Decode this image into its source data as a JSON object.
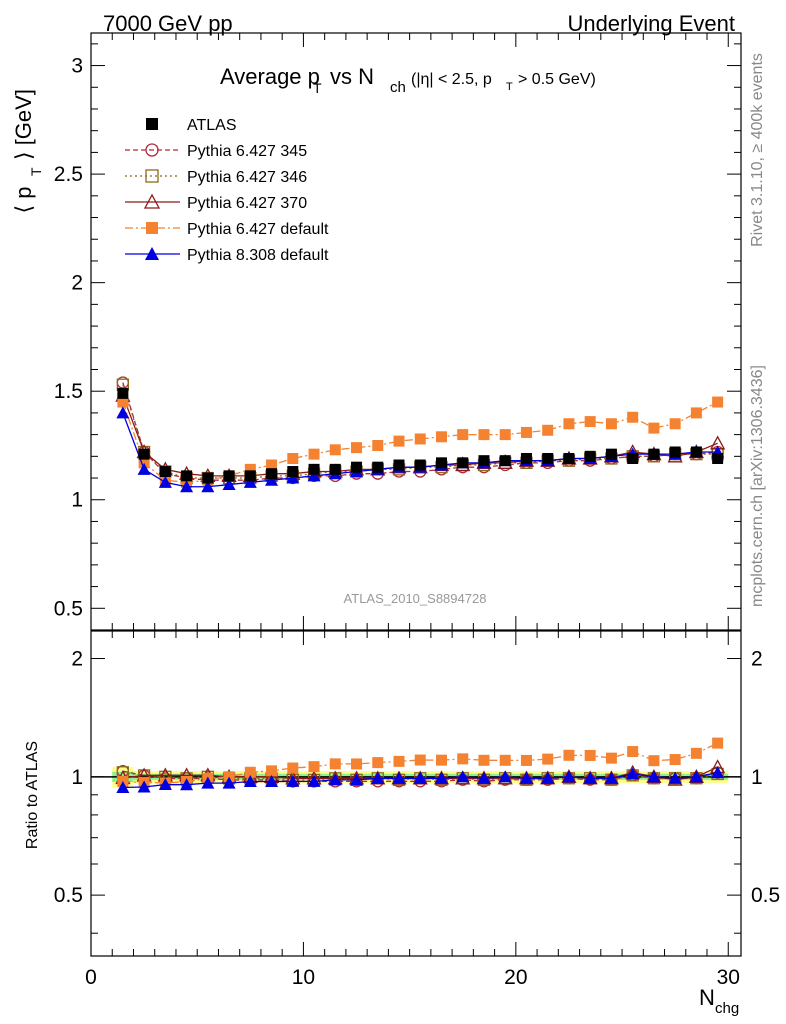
{
  "header": {
    "energy": "7000 GeV pp",
    "process": "Underlying Event",
    "title_main": "Average p",
    "title_sub_T": "T",
    "title_vs": "vs N",
    "title_sub_ch": "ch",
    "title_cut_a": "(|η| < 2.5, p",
    "title_cut_T": "T",
    "title_cut_b": "> 0.5 GeV)",
    "analysis_id": "ATLAS_2010_S8894728",
    "rivet_note": "Rivet 3.1.10, ≥ 400k events",
    "mcplots_note": "mcplots.cern.ch [arXiv:1306.3436]"
  },
  "axes": {
    "ylabel_main_a": "⟨ p",
    "ylabel_main_T": "T",
    "ylabel_main_b": "⟩ [GeV]",
    "ylabel_ratio": "Ratio to ATLAS",
    "xlabel_a": "N",
    "xlabel_sub": "chg",
    "main_yticks": [
      "0.5",
      "1",
      "1.5",
      "2",
      "2.5",
      "3"
    ],
    "ratio_yticks": [
      "0.5",
      "1",
      "2"
    ],
    "xticks": [
      "0",
      "10",
      "20",
      "30"
    ]
  },
  "legend": [
    {
      "label": "ATLAS"
    },
    {
      "label": "Pythia 6.427 345"
    },
    {
      "label": "Pythia 6.427 346"
    },
    {
      "label": "Pythia 6.427 370"
    },
    {
      "label": "Pythia 6.427 default"
    },
    {
      "label": "Pythia 8.308 default"
    }
  ],
  "chart_data": {
    "type": "scatter",
    "xlim": [
      0,
      30.6
    ],
    "ylim": [
      0.4,
      3.15
    ],
    "ratio_ylim": [
      0.35,
      2.35
    ],
    "ratio_scale": "log",
    "legend_position": "top-left",
    "x": [
      1.5,
      2.5,
      3.5,
      4.5,
      5.5,
      6.5,
      7.5,
      8.5,
      9.5,
      10.5,
      11.5,
      12.5,
      13.5,
      14.5,
      15.5,
      16.5,
      17.5,
      18.5,
      19.5,
      20.5,
      21.5,
      22.5,
      23.5,
      24.5,
      25.5,
      26.5,
      27.5,
      28.5,
      29.5
    ],
    "series": [
      {
        "name": "ATLAS",
        "color": "#000000",
        "marker": "filled-square",
        "line": "none",
        "values": [
          1.49,
          1.21,
          1.13,
          1.11,
          1.1,
          1.11,
          1.11,
          1.12,
          1.13,
          1.14,
          1.14,
          1.15,
          1.15,
          1.16,
          1.16,
          1.17,
          1.17,
          1.18,
          1.18,
          1.19,
          1.19,
          1.19,
          1.2,
          1.21,
          1.19,
          1.21,
          1.22,
          1.22,
          1.19
        ]
      },
      {
        "name": "Pythia 6.427 345",
        "color": "#b02a3a",
        "marker": "open-circle",
        "line": "dashed",
        "values": [
          1.54,
          1.22,
          1.12,
          1.1,
          1.09,
          1.09,
          1.09,
          1.1,
          1.1,
          1.11,
          1.11,
          1.12,
          1.12,
          1.13,
          1.13,
          1.14,
          1.15,
          1.15,
          1.16,
          1.17,
          1.17,
          1.18,
          1.18,
          1.19,
          1.2,
          1.2,
          1.21,
          1.21,
          1.22
        ]
      },
      {
        "name": "Pythia 6.427 346",
        "color": "#8b6a1a",
        "marker": "open-square",
        "line": "dotted",
        "values": [
          1.53,
          1.22,
          1.13,
          1.1,
          1.1,
          1.1,
          1.1,
          1.11,
          1.11,
          1.12,
          1.13,
          1.13,
          1.14,
          1.14,
          1.15,
          1.15,
          1.16,
          1.16,
          1.17,
          1.17,
          1.18,
          1.18,
          1.19,
          1.19,
          1.2,
          1.2,
          1.21,
          1.21,
          1.21
        ]
      },
      {
        "name": "Pythia 6.427 370",
        "color": "#8b1a1a",
        "marker": "open-triangle",
        "line": "solid",
        "values": [
          1.48,
          1.22,
          1.14,
          1.12,
          1.11,
          1.11,
          1.11,
          1.12,
          1.12,
          1.13,
          1.13,
          1.14,
          1.14,
          1.15,
          1.15,
          1.16,
          1.16,
          1.17,
          1.17,
          1.18,
          1.18,
          1.19,
          1.19,
          1.2,
          1.22,
          1.21,
          1.2,
          1.22,
          1.26
        ]
      },
      {
        "name": "Pythia 6.427 default",
        "color": "#f58231",
        "marker": "filled-square",
        "line": "dashdot",
        "values": [
          1.45,
          1.17,
          1.09,
          1.08,
          1.09,
          1.11,
          1.14,
          1.16,
          1.19,
          1.21,
          1.23,
          1.24,
          1.25,
          1.27,
          1.28,
          1.29,
          1.3,
          1.3,
          1.3,
          1.31,
          1.32,
          1.35,
          1.36,
          1.35,
          1.38,
          1.33,
          1.35,
          1.4,
          1.45
        ]
      },
      {
        "name": "Pythia 8.308 default",
        "color": "#0000e0",
        "marker": "filled-triangle",
        "line": "solid",
        "values": [
          1.4,
          1.14,
          1.08,
          1.06,
          1.06,
          1.07,
          1.08,
          1.09,
          1.1,
          1.11,
          1.12,
          1.13,
          1.14,
          1.15,
          1.15,
          1.16,
          1.17,
          1.17,
          1.18,
          1.18,
          1.18,
          1.19,
          1.19,
          1.2,
          1.21,
          1.21,
          1.21,
          1.22,
          1.22
        ]
      }
    ]
  }
}
